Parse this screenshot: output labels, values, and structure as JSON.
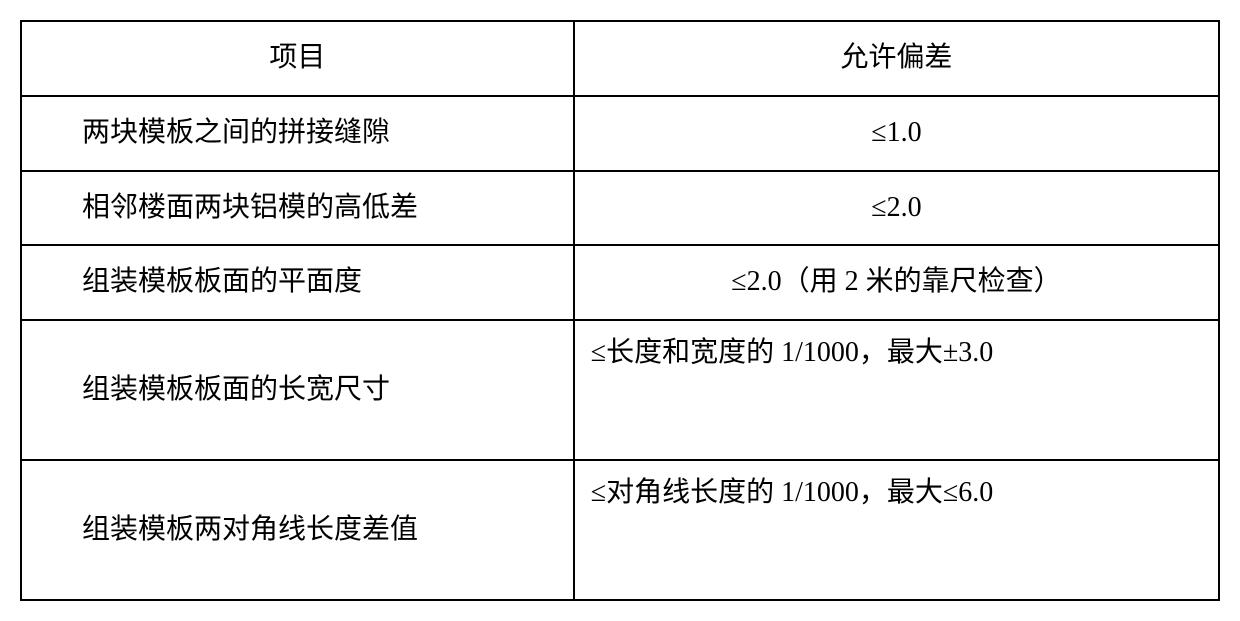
{
  "table": {
    "border_color": "#000000",
    "background_color": "#ffffff",
    "text_color": "#000000",
    "font_size_pt": 21,
    "columns": [
      {
        "header": "项目",
        "width_pct": 46,
        "align": "center"
      },
      {
        "header": "允许偏差",
        "width_pct": 54,
        "align": "center"
      }
    ],
    "rows": [
      {
        "item": "两块模板之间的拼接缝隙",
        "tolerance": "≤1.0",
        "tol_align": "center",
        "height": "normal"
      },
      {
        "item": "相邻楼面两块铝模的高低差",
        "tolerance": "≤2.0",
        "tol_align": "center",
        "height": "normal"
      },
      {
        "item": "组装模板板面的平面度",
        "tolerance": "≤2.0（用 2 米的靠尺检查）",
        "tol_align": "center",
        "height": "normal"
      },
      {
        "item": "组装模板板面的长宽尺寸",
        "tolerance": "≤长度和宽度的 1/1000，最大±3.0",
        "tol_align": "left",
        "height": "tall"
      },
      {
        "item": "组装模板两对角线长度差值",
        "tolerance": "≤对角线长度的 1/1000，最大≤6.0",
        "tol_align": "left",
        "height": "tall"
      }
    ]
  }
}
